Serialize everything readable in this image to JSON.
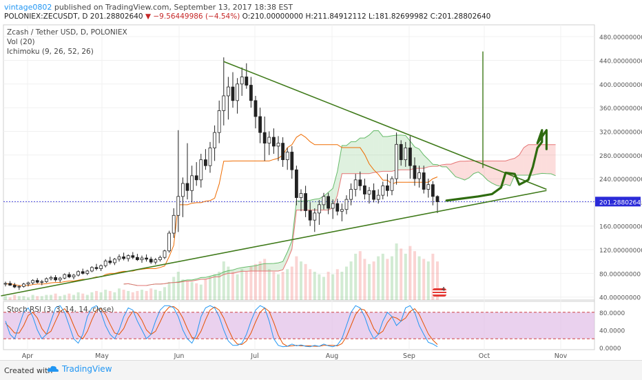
{
  "header": {
    "user": "vintage0802",
    "published": " published on TradingView.com, September 13, 2017 18:38 EST",
    "symbol": "POLONIEX:ZECUSDT, D",
    "last": "201.28802640",
    "change": "▼ −9.56449986 (−4.54%)",
    "o": "O:210.00000000",
    "h": "H:211.84912112",
    "l": "L:181.82699982",
    "c": "C:201.28802640"
  },
  "legend": {
    "title": "Zcash / Tether USD, D, POLONIEX",
    "vol": "Vol (20)",
    "ichimoku": "Ichimoku (9, 26, 52, 26)",
    "stoch": "Stoch RSI (3, 3, 14, 14, close)"
  },
  "footer": {
    "created": "Created with",
    "brand": "TradingView"
  },
  "colors": {
    "up": "#4caf50",
    "down": "#c62828",
    "trend": "#3f7a1a",
    "price_line": "#2a2ad8",
    "stoch_k": "#2196f3",
    "stoch_d": "#e65100",
    "stoch_band": "#e1bee7"
  },
  "chart_data": {
    "type": "candlestick",
    "price_axis_ticks": [
      "480.00000000",
      "440.00000000",
      "400.00000000",
      "360.00000000",
      "320.00000000",
      "280.00000000",
      "240.00000000",
      "200.00000000",
      "160.00000000",
      "120.00000000",
      "80.00000000",
      "40.00000000"
    ],
    "price_range": [
      35,
      500
    ],
    "time_axis_ticks": [
      "Apr",
      "May",
      "Jun",
      "Jul",
      "Aug",
      "Sep",
      "Oct",
      "Nov"
    ],
    "last_price_label": "201.28802640",
    "stoch_axis_ticks": [
      "80.0000",
      "40.0000",
      "0.0000"
    ],
    "stoch_range": [
      0,
      100
    ],
    "current_price": 201.288,
    "ohlc": [
      [
        62,
        66,
        58,
        63
      ],
      [
        63,
        67,
        59,
        60
      ],
      [
        60,
        64,
        55,
        57
      ],
      [
        57,
        60,
        52,
        58
      ],
      [
        58,
        64,
        56,
        62
      ],
      [
        62,
        66,
        58,
        64
      ],
      [
        64,
        70,
        61,
        68
      ],
      [
        68,
        72,
        63,
        65
      ],
      [
        65,
        69,
        60,
        66
      ],
      [
        66,
        73,
        64,
        71
      ],
      [
        71,
        76,
        68,
        73
      ],
      [
        73,
        77,
        66,
        69
      ],
      [
        69,
        74,
        65,
        72
      ],
      [
        72,
        80,
        70,
        78
      ],
      [
        78,
        82,
        72,
        74
      ],
      [
        74,
        79,
        70,
        77
      ],
      [
        77,
        85,
        75,
        83
      ],
      [
        83,
        88,
        78,
        80
      ],
      [
        80,
        86,
        77,
        84
      ],
      [
        84,
        92,
        82,
        90
      ],
      [
        90,
        96,
        85,
        88
      ],
      [
        88,
        95,
        84,
        93
      ],
      [
        93,
        104,
        90,
        101
      ],
      [
        101,
        108,
        95,
        98
      ],
      [
        98,
        106,
        94,
        104
      ],
      [
        104,
        112,
        100,
        108
      ],
      [
        108,
        115,
        102,
        105
      ],
      [
        105,
        112,
        100,
        110
      ],
      [
        110,
        116,
        104,
        107
      ],
      [
        107,
        113,
        101,
        103
      ],
      [
        103,
        110,
        98,
        106
      ],
      [
        106,
        112,
        100,
        104
      ],
      [
        104,
        108,
        96,
        99
      ],
      [
        99,
        106,
        95,
        103
      ],
      [
        103,
        110,
        100,
        107
      ],
      [
        107,
        120,
        104,
        118
      ],
      [
        118,
        152,
        115,
        148
      ],
      [
        148,
        190,
        140,
        178
      ],
      [
        178,
        322,
        150,
        210
      ],
      [
        210,
        242,
        175,
        232
      ],
      [
        232,
        300,
        205,
        220
      ],
      [
        220,
        262,
        200,
        245
      ],
      [
        245,
        268,
        228,
        238
      ],
      [
        238,
        282,
        225,
        272
      ],
      [
        272,
        290,
        255,
        262
      ],
      [
        262,
        302,
        250,
        292
      ],
      [
        292,
        330,
        270,
        318
      ],
      [
        318,
        372,
        300,
        355
      ],
      [
        355,
        445,
        330,
        380
      ],
      [
        380,
        412,
        340,
        395
      ],
      [
        395,
        420,
        360,
        372
      ],
      [
        372,
        410,
        350,
        400
      ],
      [
        400,
        428,
        380,
        412
      ],
      [
        412,
        435,
        392,
        398
      ],
      [
        398,
        412,
        360,
        372
      ],
      [
        372,
        380,
        325,
        345
      ],
      [
        345,
        360,
        300,
        318
      ],
      [
        318,
        345,
        270,
        300
      ],
      [
        300,
        320,
        280,
        310
      ],
      [
        310,
        325,
        282,
        295
      ],
      [
        295,
        312,
        270,
        300
      ],
      [
        300,
        310,
        260,
        272
      ],
      [
        272,
        292,
        255,
        285
      ],
      [
        285,
        295,
        240,
        255
      ],
      [
        255,
        262,
        195,
        208
      ],
      [
        208,
        222,
        185,
        215
      ],
      [
        215,
        228,
        175,
        186
      ],
      [
        186,
        200,
        160,
        170
      ],
      [
        170,
        190,
        150,
        182
      ],
      [
        182,
        204,
        162,
        196
      ],
      [
        196,
        216,
        188,
        210
      ],
      [
        210,
        216,
        180,
        190
      ],
      [
        190,
        205,
        172,
        198
      ],
      [
        198,
        206,
        178,
        185
      ],
      [
        185,
        198,
        168,
        188
      ],
      [
        188,
        212,
        180,
        205
      ],
      [
        205,
        232,
        195,
        222
      ],
      [
        222,
        248,
        210,
        238
      ],
      [
        238,
        252,
        220,
        228
      ],
      [
        228,
        240,
        205,
        214
      ],
      [
        214,
        226,
        198,
        220
      ],
      [
        220,
        232,
        200,
        205
      ],
      [
        205,
        222,
        198,
        212
      ],
      [
        212,
        235,
        205,
        228
      ],
      [
        228,
        248,
        210,
        220
      ],
      [
        220,
        244,
        212,
        240
      ],
      [
        240,
        318,
        230,
        298
      ],
      [
        298,
        305,
        262,
        272
      ],
      [
        272,
        302,
        260,
        292
      ],
      [
        292,
        312,
        240,
        262
      ],
      [
        262,
        276,
        228,
        240
      ],
      [
        240,
        262,
        225,
        250
      ],
      [
        250,
        262,
        215,
        222
      ],
      [
        222,
        240,
        208,
        230
      ],
      [
        230,
        236,
        195,
        210
      ],
      [
        210,
        212,
        182,
        201
      ]
    ],
    "volume": [
      3,
      2,
      4,
      3,
      3,
      2,
      4,
      3,
      3,
      4,
      4,
      5,
      3,
      4,
      5,
      4,
      6,
      5,
      4,
      6,
      7,
      6,
      8,
      7,
      6,
      9,
      8,
      7,
      6,
      7,
      8,
      7,
      9,
      8,
      7,
      10,
      14,
      18,
      22,
      16,
      15,
      14,
      13,
      12,
      16,
      18,
      20,
      22,
      30,
      26,
      22,
      20,
      24,
      22,
      26,
      28,
      30,
      32,
      24,
      22,
      20,
      22,
      24,
      26,
      34,
      30,
      28,
      24,
      22,
      20,
      18,
      22,
      20,
      24,
      22,
      26,
      30,
      36,
      38,
      32,
      28,
      30,
      34,
      36,
      32,
      34,
      44,
      40,
      36,
      42,
      38,
      34,
      32,
      30,
      36,
      30
    ],
    "stoch_k": [
      60,
      30,
      20,
      50,
      80,
      90,
      70,
      40,
      20,
      30,
      60,
      90,
      95,
      80,
      50,
      20,
      10,
      30,
      70,
      90,
      95,
      80,
      50,
      30,
      20,
      40,
      70,
      90,
      85,
      60,
      40,
      20,
      30,
      60,
      85,
      95,
      95,
      90,
      70,
      40,
      20,
      10,
      30,
      70,
      90,
      95,
      90,
      70,
      40,
      15,
      5,
      5,
      10,
      30,
      60,
      85,
      95,
      90,
      60,
      20,
      5,
      2,
      3,
      8,
      4,
      6,
      3,
      2,
      5,
      3,
      8,
      4,
      2,
      6,
      20,
      50,
      80,
      95,
      90,
      70,
      40,
      20,
      30,
      60,
      80,
      70,
      50,
      60,
      90,
      95,
      80,
      50,
      30,
      12,
      8,
      2
    ],
    "stoch_d": [
      55,
      45,
      33,
      33,
      50,
      73,
      80,
      67,
      43,
      30,
      37,
      60,
      82,
      88,
      75,
      50,
      27,
      20,
      37,
      63,
      85,
      88,
      75,
      53,
      33,
      30,
      43,
      67,
      82,
      78,
      62,
      40,
      30,
      37,
      58,
      80,
      92,
      93,
      85,
      67,
      43,
      23,
      20,
      37,
      63,
      85,
      92,
      85,
      67,
      42,
      20,
      8,
      7,
      15,
      33,
      58,
      80,
      90,
      82,
      57,
      28,
      9,
      3,
      4,
      5,
      4,
      4,
      4,
      3,
      3,
      5,
      5,
      5,
      4,
      9,
      25,
      50,
      75,
      88,
      85,
      67,
      43,
      30,
      37,
      57,
      70,
      67,
      60,
      67,
      82,
      88,
      75,
      53,
      31,
      17,
      7
    ],
    "trendlines": [
      {
        "name": "upper",
        "from": [
          19,
          435
        ],
        "to": [
          147,
          222
        ]
      },
      {
        "name": "lower",
        "from": [
          -8,
          48
        ],
        "to": [
          147,
          223
        ]
      }
    ],
    "annotations": [
      "4",
      "projection-arrow"
    ]
  }
}
